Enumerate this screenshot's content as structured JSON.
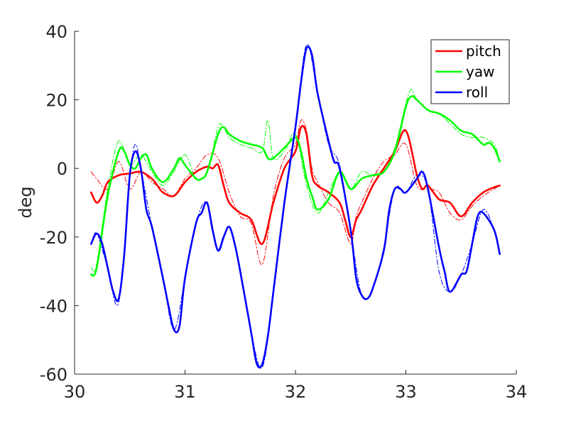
{
  "chart_data": {
    "type": "line",
    "title": "",
    "xlabel": "",
    "ylabel": "deg",
    "xlim": [
      30,
      34
    ],
    "ylim": [
      -60,
      40
    ],
    "xticks": [
      30,
      31,
      32,
      33,
      34
    ],
    "xtick_labels": [
      "30",
      "31",
      "32",
      "33",
      "34"
    ],
    "yticks": [
      -60,
      -40,
      -20,
      0,
      20,
      40
    ],
    "ytick_labels": [
      "-60",
      "-40",
      "-20",
      "0",
      "20",
      "40"
    ],
    "grid": false,
    "legend_position": "top-right",
    "series": [
      {
        "name": "pitch",
        "color": "#ff0000",
        "style": "solid",
        "x": [
          30.15,
          30.2,
          30.25,
          30.3,
          30.4,
          30.5,
          30.6,
          30.7,
          30.75,
          30.8,
          30.9,
          31.0,
          31.1,
          31.2,
          31.25,
          31.3,
          31.35,
          31.4,
          31.5,
          31.6,
          31.7,
          31.8,
          31.9,
          32.0,
          32.05,
          32.1,
          32.15,
          32.2,
          32.3,
          32.4,
          32.45,
          32.5,
          32.55,
          32.6,
          32.7,
          32.8,
          32.9,
          33.0,
          33.1,
          33.15,
          33.2,
          33.3,
          33.4,
          33.5,
          33.6,
          33.7,
          33.8,
          33.85
        ],
        "y": [
          -7,
          -10,
          -8,
          -4,
          -2,
          -1.5,
          -1,
          -3,
          -5,
          -7,
          -8,
          -4,
          -1,
          0.5,
          0,
          1,
          -5,
          -10,
          -13,
          -15,
          -22,
          -10,
          0,
          5,
          12,
          10,
          -2,
          -5,
          -7,
          -10,
          -15,
          -20,
          -15,
          -12,
          -5,
          0,
          5,
          11,
          -2,
          -6,
          -5,
          -9,
          -10,
          -14,
          -10,
          -7,
          -5.5,
          -5
        ]
      },
      {
        "name": "pitch",
        "color": "#ff0000",
        "style": "dashdot",
        "x": [
          30.15,
          30.2,
          30.3,
          30.4,
          30.5,
          30.6,
          30.7,
          30.8,
          30.9,
          31.0,
          31.1,
          31.2,
          31.3,
          31.4,
          31.5,
          31.6,
          31.7,
          31.8,
          31.9,
          32.0,
          32.05,
          32.1,
          32.15,
          32.2,
          32.3,
          32.4,
          32.5,
          32.55,
          32.6,
          32.7,
          32.8,
          32.9,
          33.0,
          33.1,
          33.2,
          33.3,
          33.4,
          33.5,
          33.6,
          33.7,
          33.8,
          33.85
        ],
        "y": [
          -1,
          -3,
          -6,
          2,
          -6,
          -1,
          -4,
          -6,
          -8,
          -3,
          0,
          4,
          3,
          -7,
          -14,
          -16,
          -28,
          -8,
          3,
          7,
          14,
          11,
          0,
          -4,
          -10,
          -13,
          -22,
          -14,
          -10,
          -3,
          2,
          4,
          7,
          -5,
          -6,
          -7,
          -13,
          -15,
          -11,
          -8,
          -6,
          -5
        ]
      },
      {
        "name": "yaw",
        "color": "#00ff00",
        "style": "solid",
        "x": [
          30.15,
          30.2,
          30.3,
          30.4,
          30.45,
          30.5,
          30.55,
          30.6,
          30.65,
          30.7,
          30.8,
          30.9,
          30.95,
          31.0,
          31.1,
          31.15,
          31.2,
          31.3,
          31.35,
          31.4,
          31.5,
          31.6,
          31.7,
          31.75,
          31.8,
          31.9,
          32.0,
          32.05,
          32.1,
          32.15,
          32.2,
          32.3,
          32.4,
          32.5,
          32.6,
          32.7,
          32.8,
          32.9,
          33.0,
          33.05,
          33.1,
          33.2,
          33.3,
          33.4,
          33.5,
          33.6,
          33.7,
          33.75,
          33.8,
          33.85
        ],
        "y": [
          -31,
          -29,
          -8,
          5,
          5,
          1,
          0,
          3,
          4,
          0,
          -4,
          0,
          3,
          1,
          -3,
          -3,
          -1,
          10,
          12,
          10,
          8,
          7,
          6,
          3,
          3,
          6,
          9,
          5,
          -3,
          -8,
          -12,
          -9,
          -1,
          -6,
          -3,
          -2,
          -1,
          5,
          18,
          21,
          20,
          17,
          16,
          14,
          11,
          10,
          7,
          7.5,
          6,
          2
        ]
      },
      {
        "name": "yaw",
        "color": "#00ff00",
        "style": "dashdot",
        "x": [
          30.15,
          30.2,
          30.3,
          30.4,
          30.5,
          30.6,
          30.7,
          30.8,
          30.9,
          31.0,
          31.1,
          31.2,
          31.3,
          31.35,
          31.4,
          31.5,
          31.6,
          31.7,
          31.75,
          31.8,
          31.9,
          32.0,
          32.1,
          32.2,
          32.3,
          32.4,
          32.5,
          32.6,
          32.7,
          32.8,
          32.9,
          33.0,
          33.05,
          33.1,
          33.2,
          33.3,
          33.4,
          33.5,
          33.6,
          33.7,
          33.8,
          33.85
        ],
        "y": [
          -29,
          -28,
          -6,
          8,
          1,
          4,
          -1,
          -5,
          -1,
          4,
          -3,
          -1,
          12,
          12,
          9,
          7,
          6,
          5,
          14,
          3,
          5,
          10,
          -5,
          -13,
          -7,
          -1,
          -6,
          -1,
          -2,
          0,
          6,
          19,
          23,
          20,
          17,
          16,
          13,
          10,
          9,
          9,
          7,
          2
        ]
      },
      {
        "name": "roll",
        "color": "#0000ff",
        "style": "solid",
        "x": [
          30.15,
          30.2,
          30.25,
          30.3,
          30.35,
          30.4,
          30.45,
          30.5,
          30.55,
          30.6,
          30.65,
          30.7,
          30.8,
          30.85,
          30.9,
          30.95,
          31.0,
          31.1,
          31.15,
          31.2,
          31.25,
          31.3,
          31.35,
          31.4,
          31.45,
          31.5,
          31.6,
          31.65,
          31.7,
          31.75,
          31.8,
          31.9,
          32.0,
          32.05,
          32.1,
          32.15,
          32.2,
          32.3,
          32.35,
          32.4,
          32.5,
          32.55,
          32.6,
          32.65,
          32.7,
          32.8,
          32.85,
          32.9,
          32.95,
          33.0,
          33.1,
          33.15,
          33.2,
          33.3,
          33.35,
          33.4,
          33.5,
          33.55,
          33.6,
          33.65,
          33.7,
          33.8,
          33.85
        ],
        "y": [
          -22,
          -19,
          -22,
          -29,
          -36,
          -38,
          -25,
          -2,
          5,
          0,
          -12,
          -17,
          -32,
          -40,
          -47,
          -46,
          -32,
          -16,
          -13,
          -10,
          -18,
          -24,
          -20,
          -17,
          -22,
          -30,
          -48,
          -57,
          -57,
          -49,
          -36,
          -10,
          12,
          25,
          35,
          33,
          22,
          8,
          2,
          0,
          -18,
          -32,
          -37,
          -38,
          -35,
          -24,
          -12,
          -6,
          -6,
          -7,
          -3,
          -1,
          -6,
          -23,
          -30,
          -36,
          -31,
          -30,
          -22,
          -14,
          -13,
          -18,
          -25
        ]
      },
      {
        "name": "roll",
        "color": "#0000ff",
        "style": "dashdot",
        "x": [
          30.15,
          30.2,
          30.3,
          30.4,
          30.5,
          30.55,
          30.6,
          30.7,
          30.8,
          30.9,
          31.0,
          31.1,
          31.2,
          31.3,
          31.4,
          31.5,
          31.6,
          31.7,
          31.8,
          31.9,
          32.0,
          32.1,
          32.2,
          32.3,
          32.4,
          32.5,
          32.6,
          32.7,
          32.8,
          32.9,
          33.0,
          33.1,
          33.2,
          33.3,
          33.4,
          33.5,
          33.6,
          33.7,
          33.8,
          33.85
        ],
        "y": [
          -22,
          -19,
          -29,
          -39,
          -3,
          7,
          0,
          -17,
          -32,
          -47,
          -32,
          -16,
          -10,
          -24,
          -17,
          -30,
          -48,
          -58,
          -37,
          -10,
          12,
          36,
          22,
          7,
          1,
          -18,
          -37,
          -35,
          -23,
          -6,
          -7,
          -2,
          -6,
          -30,
          -36,
          -31,
          -22,
          -12,
          -18,
          -25
        ]
      }
    ],
    "legend": [
      {
        "name": "pitch",
        "color": "#ff0000"
      },
      {
        "name": "yaw",
        "color": "#00ff00"
      },
      {
        "name": "roll",
        "color": "#0000ff"
      }
    ]
  }
}
